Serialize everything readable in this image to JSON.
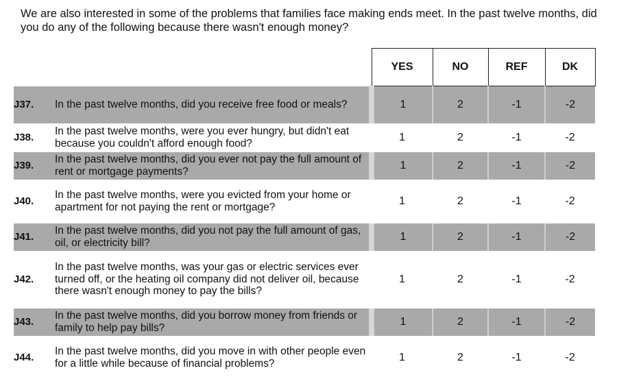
{
  "intro": "We are also interested in some of the problems that families face making ends meet.  In the past twelve months, did you do any of the following because there wasn't enough money?",
  "headers": [
    "YES",
    "NO",
    "REF",
    "DK"
  ],
  "questions": [
    {
      "id": "J37.",
      "text": "In the past twelve months, did you receive free food or meals?",
      "codes": [
        "1",
        "2",
        "-1",
        "-2"
      ],
      "shaded": true
    },
    {
      "id": "J38.",
      "text": "In the past twelve months, were you ever hungry, but didn't eat because you couldn't afford enough food?",
      "codes": [
        "1",
        "2",
        "-1",
        "-2"
      ],
      "shaded": false
    },
    {
      "id": "J39.",
      "text": "In the past twelve months, did you ever not pay the full amount of rent or mortgage payments?",
      "codes": [
        "1",
        "2",
        "-1",
        "-2"
      ],
      "shaded": true
    },
    {
      "id": "J40.",
      "text": "In the past twelve months, were you evicted from your home or apartment for not paying the rent or mortgage?",
      "codes": [
        "1",
        "2",
        "-1",
        "-2"
      ],
      "shaded": false
    },
    {
      "id": "J41.",
      "text": "In the past twelve months, did you not pay the full amount of gas, oil, or electricity bill?",
      "codes": [
        "1",
        "2",
        "-1",
        "-2"
      ],
      "shaded": true
    },
    {
      "id": "J42.",
      "text": "In the past twelve months, was your gas or electric services ever turned off, or the heating oil company did not deliver oil, because there wasn't enough money to pay the bills?",
      "codes": [
        "1",
        "2",
        "-1",
        "-2"
      ],
      "shaded": false
    },
    {
      "id": "J43.",
      "text": "In the past twelve months, did you borrow money from friends or family to help pay bills?",
      "codes": [
        "1",
        "2",
        "-1",
        "-2"
      ],
      "shaded": true
    },
    {
      "id": "J44.",
      "text": "In the past twelve months, did you move in with other people even for a little while because of financial problems?",
      "codes": [
        "1",
        "2",
        "-1",
        "-2"
      ],
      "shaded": false
    }
  ]
}
